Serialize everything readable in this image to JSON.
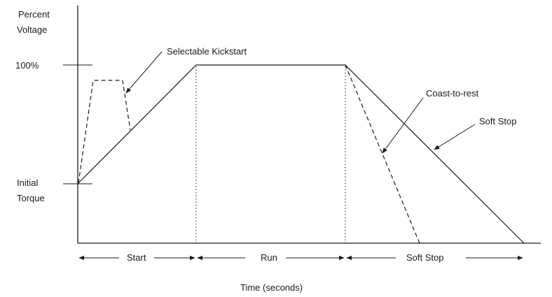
{
  "y_axis": {
    "title_line1": "Percent",
    "title_line2": "Voltage",
    "tick_top": "100%",
    "tick_bottom_line1": "Initial",
    "tick_bottom_line2": "Torque"
  },
  "annotations": {
    "kickstart": "Selectable Kickstart",
    "coast": "Coast-to-rest",
    "soft_stop_curve": "Soft Stop"
  },
  "phases": {
    "start": "Start",
    "run": "Run",
    "soft_stop": "Soft Stop"
  },
  "x_axis": {
    "title": "Time (seconds)"
  }
}
